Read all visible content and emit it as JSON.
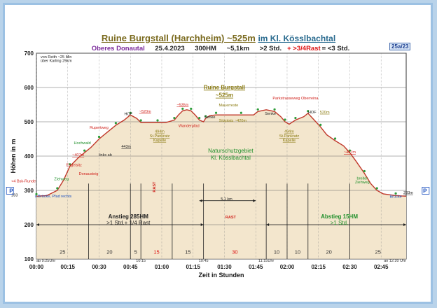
{
  "header": {
    "title": "Ruine Burgstall (Harchheim) ~525m",
    "region": "im Kl. Kösslbachtal",
    "area": "Oberes Donautal",
    "date": "25.4.2023",
    "hm": "300HM",
    "distance": "~5,1km",
    "duration": ">2 Std.",
    "rast": "+ >3/4Rast",
    "total": "= <3 Std.",
    "badge": "25a/23"
  },
  "chart_data": {
    "type": "area",
    "title": "Ruine Burgstall (Harchheim) ~525m im Kl. Kösslbachtal",
    "xlabel": "Zeit in Stunden",
    "ylabel": "Höhen in m",
    "ylim": [
      100,
      700
    ],
    "xlim": [
      0,
      177
    ],
    "yticks": [
      100,
      200,
      300,
      400,
      500,
      600,
      700
    ],
    "xticks": [
      {
        "v": 0,
        "l": "00:00"
      },
      {
        "v": 15,
        "l": "00:15"
      },
      {
        "v": 30,
        "l": "00:30"
      },
      {
        "v": 45,
        "l": "00:45"
      },
      {
        "v": 60,
        "l": "01:00"
      },
      {
        "v": 75,
        "l": "01:15"
      },
      {
        "v": 90,
        "l": "01:30"
      },
      {
        "v": 105,
        "l": "01:45"
      },
      {
        "v": 120,
        "l": "02:00"
      },
      {
        "v": 135,
        "l": "02:15"
      },
      {
        "v": 150,
        "l": "02:30"
      },
      {
        "v": 165,
        "l": "02:45"
      }
    ],
    "profile": [
      [
        0,
        283
      ],
      [
        5,
        285
      ],
      [
        10,
        300
      ],
      [
        13,
        330
      ],
      [
        16,
        370
      ],
      [
        20,
        395
      ],
      [
        23,
        410
      ],
      [
        26,
        425
      ],
      [
        30,
        450
      ],
      [
        34,
        470
      ],
      [
        38,
        490
      ],
      [
        42,
        505
      ],
      [
        45,
        520
      ],
      [
        48,
        510
      ],
      [
        50,
        498
      ],
      [
        53,
        498
      ],
      [
        58,
        498
      ],
      [
        62,
        498
      ],
      [
        66,
        505
      ],
      [
        68,
        520
      ],
      [
        70,
        532
      ],
      [
        72,
        535
      ],
      [
        74,
        532
      ],
      [
        76,
        520
      ],
      [
        78,
        505
      ],
      [
        80,
        500
      ],
      [
        81,
        510
      ],
      [
        83,
        518
      ],
      [
        86,
        520
      ],
      [
        92,
        520
      ],
      [
        98,
        520
      ],
      [
        104,
        520
      ],
      [
        106,
        530
      ],
      [
        110,
        535
      ],
      [
        114,
        530
      ],
      [
        117,
        515
      ],
      [
        119,
        500
      ],
      [
        121,
        493
      ],
      [
        124,
        505
      ],
      [
        128,
        515
      ],
      [
        130,
        525
      ],
      [
        133,
        505
      ],
      [
        136,
        485
      ],
      [
        139,
        462
      ],
      [
        143,
        445
      ],
      [
        147,
        430
      ],
      [
        150,
        410
      ],
      [
        153,
        385
      ],
      [
        157,
        350
      ],
      [
        160,
        320
      ],
      [
        163,
        300
      ],
      [
        166,
        290
      ],
      [
        172,
        285
      ],
      [
        177,
        283
      ]
    ],
    "segment_times": [
      {
        "from": 0,
        "to": 25,
        "label": "25"
      },
      {
        "from": 25,
        "to": 45,
        "label": "20"
      },
      {
        "from": 45,
        "to": 50,
        "label": "5"
      },
      {
        "from": 50,
        "to": 65,
        "label": "15",
        "rast": true
      },
      {
        "from": 65,
        "to": 80,
        "label": "15"
      },
      {
        "from": 80,
        "to": 110,
        "label": "30",
        "rast": true
      },
      {
        "from": 110,
        "to": 120,
        "label": "10"
      },
      {
        "from": 120,
        "to": 130,
        "label": "10"
      },
      {
        "from": 130,
        "to": 150,
        "label": "20"
      },
      {
        "from": 150,
        "to": 177,
        "label": "25"
      }
    ],
    "time_markers": [
      {
        "x": 50,
        "label": "10:15"
      },
      {
        "x": 80,
        "label": "10:45"
      },
      {
        "x": 110,
        "label": "11:15Uhr"
      },
      {
        "x": 0,
        "label": "ab 9:25Uhr"
      },
      {
        "x": 177,
        "label": "an 12:20 Uhr"
      }
    ],
    "annotations": [
      {
        "x": 25,
        "y": 345,
        "text": "Donausteig",
        "color": "red"
      },
      {
        "x": 20,
        "y": 400,
        "text": "~407m",
        "color": "red"
      },
      {
        "x": 18,
        "y": 370,
        "text": "Engelsitz",
        "color": "red"
      },
      {
        "x": 22,
        "y": 435,
        "text": "Hochwald",
        "color": "green"
      },
      {
        "x": 30,
        "y": 480,
        "text": "Rupertweg",
        "color": "red"
      },
      {
        "x": 33,
        "y": 400,
        "text": "links ab",
        "color": "black"
      },
      {
        "x": 43,
        "y": 424,
        "text": "443m",
        "color": "black"
      },
      {
        "x": 52,
        "y": 527,
        "text": "~520m",
        "color": "red"
      },
      {
        "x": 44,
        "y": 519,
        "text": "HOF",
        "color": "black"
      },
      {
        "x": 59,
        "y": 468,
        "text": "494m",
        "color": "olive"
      },
      {
        "x": 59,
        "y": 455,
        "text": "St.Pankratz",
        "color": "olive"
      },
      {
        "x": 59,
        "y": 443,
        "text": "Kapelle",
        "color": "olive"
      },
      {
        "x": 70,
        "y": 546,
        "text": "~535m",
        "color": "red"
      },
      {
        "x": 73,
        "y": 485,
        "text": "Wanderpfad",
        "color": "red"
      },
      {
        "x": 83,
        "y": 510,
        "text": "Senke",
        "color": "black"
      },
      {
        "x": 90,
        "y": 595,
        "text": "Ruine Burgstall",
        "color": "olive"
      },
      {
        "x": 90,
        "y": 572,
        "text": "~525m",
        "color": "olive"
      },
      {
        "x": 92,
        "y": 545,
        "text": "Mauerreste",
        "color": "olive"
      },
      {
        "x": 94,
        "y": 500,
        "text": "Sitzplatz ~420m",
        "color": "olive"
      },
      {
        "x": 93,
        "y": 410,
        "text": "Naturschutzgebiet",
        "color": "green"
      },
      {
        "x": 93,
        "y": 390,
        "text": "Kl. Kösslbachtal",
        "color": "green"
      },
      {
        "x": 91,
        "y": 271,
        "text": "5,1 km",
        "color": "black"
      },
      {
        "x": 57,
        "y": 310,
        "text": "RAST",
        "color": "red",
        "vertical": true
      },
      {
        "x": 93,
        "y": 218,
        "text": "RAST",
        "color": "red"
      },
      {
        "x": 44,
        "y": 218,
        "text": "Anstieg 285HM",
        "color": "black"
      },
      {
        "x": 44,
        "y": 200,
        "text": ">1 Std.+ 1/4 Rast",
        "color": "black"
      },
      {
        "x": 145,
        "y": 218,
        "text": "Abstieg 15HM",
        "color": "green"
      },
      {
        "x": 145,
        "y": 200,
        "text": ">1 Std.",
        "color": "green"
      },
      {
        "x": 124,
        "y": 565,
        "text": "Parkstrasseweg Oberreina",
        "color": "red"
      },
      {
        "x": 112,
        "y": 520,
        "text": "Senke",
        "color": "black"
      },
      {
        "x": 121,
        "y": 468,
        "text": "494m",
        "color": "olive"
      },
      {
        "x": 121,
        "y": 455,
        "text": "St.Pankratz",
        "color": "olive"
      },
      {
        "x": 121,
        "y": 443,
        "text": "Kapelle",
        "color": "olive"
      },
      {
        "x": 132,
        "y": 525,
        "text": "HOF",
        "color": "black"
      },
      {
        "x": 138,
        "y": 525,
        "text": "520m",
        "color": "olive"
      },
      {
        "x": 150,
        "y": 408,
        "text": "~407m",
        "color": "red"
      },
      {
        "x": 156,
        "y": 332,
        "text": "breiter",
        "color": "green"
      },
      {
        "x": 156,
        "y": 320,
        "text": "Ziehweg",
        "color": "green"
      },
      {
        "x": 12,
        "y": 330,
        "text": "Ziehweg",
        "color": "green"
      },
      {
        "x": 8,
        "y": 280,
        "text": "u.Brücke, Pfad rechts",
        "color": "blue"
      },
      {
        "x": 172,
        "y": 279,
        "text": "Brücke",
        "color": "blue"
      },
      {
        "x": 2,
        "y": 686,
        "text": "von Reith ~25 Min",
        "color": "black"
      },
      {
        "x": 2,
        "y": 675,
        "text": "über Karling 25km",
        "color": "black"
      },
      {
        "x": -12,
        "y": 323,
        "text": "<4 Bsk-Runde",
        "color": "red"
      },
      {
        "x": -12,
        "y": 283,
        "text": "283",
        "color": "black"
      },
      {
        "x": 178,
        "y": 290,
        "text": "283m",
        "color": "black"
      },
      {
        "x": -13,
        "y": 293,
        "text": "P",
        "color": "blue"
      },
      {
        "x": 186,
        "y": 293,
        "text": "P",
        "color": "blue"
      }
    ]
  }
}
